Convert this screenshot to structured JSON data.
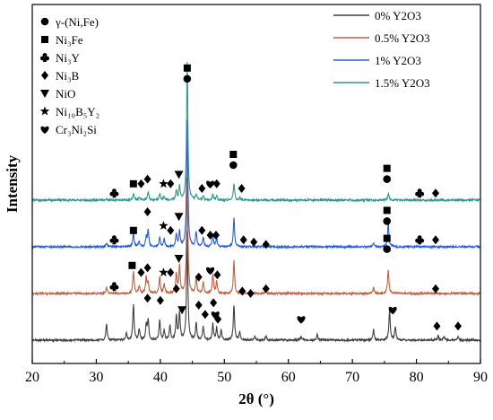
{
  "chart_data": {
    "type": "line",
    "title": "",
    "xlabel": "2θ (°)",
    "ylabel": "Intensity",
    "xlim": [
      20,
      90
    ],
    "xticks": [
      "20",
      "30",
      "40",
      "50",
      "60",
      "70",
      "80",
      "90"
    ],
    "legend_position": "top-right",
    "series": [
      {
        "name": "0% Y2O3",
        "color": "#404040",
        "baseline": 0,
        "peaks": [
          [
            31.6,
            0.6
          ],
          [
            34.7,
            0.25
          ],
          [
            35.8,
            1.35
          ],
          [
            36.7,
            0.4
          ],
          [
            37.8,
            0.55
          ],
          [
            38.1,
            0.75
          ],
          [
            39.9,
            0.75
          ],
          [
            40.6,
            0.35
          ],
          [
            41.5,
            0.55
          ],
          [
            42.5,
            0.9
          ],
          [
            43.0,
            1.0
          ],
          [
            44.2,
            4.0
          ],
          [
            45.6,
            0.65
          ],
          [
            46.7,
            0.5
          ],
          [
            48.2,
            0.6
          ],
          [
            48.8,
            0.45
          ],
          [
            49.5,
            0.35
          ],
          [
            51.5,
            1.3
          ],
          [
            52.4,
            0.3
          ],
          [
            54.8,
            0.15
          ],
          [
            56.5,
            0.15
          ],
          [
            62.0,
            0.15
          ],
          [
            64.5,
            0.2
          ],
          [
            73.3,
            0.4
          ],
          [
            75.8,
            1.1
          ],
          [
            76.7,
            0.5
          ],
          [
            83.4,
            0.15
          ],
          [
            84.3,
            0.15
          ],
          [
            86.5,
            0.15
          ]
        ]
      },
      {
        "name": "0.5% Y2O3",
        "color": "#c0603f",
        "baseline": 1,
        "peaks": [
          [
            31.6,
            0.25
          ],
          [
            35.8,
            0.85
          ],
          [
            36.7,
            0.3
          ],
          [
            37.8,
            0.6
          ],
          [
            38.1,
            0.4
          ],
          [
            39.9,
            0.6
          ],
          [
            40.6,
            0.35
          ],
          [
            42.5,
            0.75
          ],
          [
            43.0,
            1.0
          ],
          [
            44.2,
            4.3
          ],
          [
            45.6,
            0.6
          ],
          [
            46.7,
            0.4
          ],
          [
            48.2,
            0.7
          ],
          [
            48.8,
            0.45
          ],
          [
            51.5,
            1.2
          ],
          [
            56.5,
            0.1
          ],
          [
            73.3,
            0.2
          ],
          [
            75.6,
            0.9
          ]
        ]
      },
      {
        "name": "1% Y2O3",
        "color": "#2a5fd0",
        "baseline": 2,
        "peaks": [
          [
            31.6,
            0.15
          ],
          [
            35.8,
            0.55
          ],
          [
            36.7,
            0.2
          ],
          [
            37.8,
            0.35
          ],
          [
            38.1,
            0.6
          ],
          [
            39.9,
            0.35
          ],
          [
            40.6,
            0.3
          ],
          [
            42.5,
            0.45
          ],
          [
            43.0,
            0.6
          ],
          [
            44.2,
            4.7
          ],
          [
            45.6,
            0.55
          ],
          [
            46.7,
            0.35
          ],
          [
            48.2,
            0.45
          ],
          [
            48.8,
            0.3
          ],
          [
            51.5,
            1.05
          ],
          [
            56.5,
            0.1
          ],
          [
            73.3,
            0.15
          ],
          [
            75.6,
            0.9
          ]
        ]
      },
      {
        "name": "1.5% Y2O3",
        "color": "#2e9a8a",
        "baseline": 3,
        "peaks": [
          [
            31.6,
            0.05
          ],
          [
            35.8,
            0.25
          ],
          [
            36.7,
            0.1
          ],
          [
            38.1,
            0.3
          ],
          [
            39.9,
            0.25
          ],
          [
            40.6,
            0.15
          ],
          [
            42.5,
            0.35
          ],
          [
            43.0,
            0.5
          ],
          [
            44.2,
            5.1
          ],
          [
            45.6,
            0.2
          ],
          [
            46.7,
            0.15
          ],
          [
            48.2,
            0.2
          ],
          [
            48.8,
            0.15
          ],
          [
            51.5,
            0.6
          ],
          [
            52.4,
            0.1
          ],
          [
            75.6,
            0.25
          ]
        ]
      }
    ],
    "phase_legend": [
      {
        "icon": "circle",
        "label": "γ-(Ni,Fe)"
      },
      {
        "icon": "square",
        "label": "Ni₃Fe"
      },
      {
        "icon": "club",
        "label": "Ni₃Y"
      },
      {
        "icon": "diamond",
        "label": "Ni₃B"
      },
      {
        "icon": "triangle-down",
        "label": "NiO"
      },
      {
        "icon": "star",
        "label": "Ni₁₀B₅Y₂"
      },
      {
        "icon": "heart",
        "label": "Cr₃Ni₂Si"
      }
    ],
    "annotations": [
      {
        "x": 44.2,
        "y_level": 5.6,
        "icons": [
          "square",
          "circle"
        ]
      },
      {
        "x": 32.8,
        "y_level": 3.15,
        "icons": [
          "club"
        ]
      },
      {
        "x": 35.8,
        "y_level": 3.35,
        "icons": [
          "square"
        ]
      },
      {
        "x": 37.0,
        "y_level": 3.35,
        "icons": [
          "diamond"
        ]
      },
      {
        "x": 38.0,
        "y_level": 3.45,
        "icons": [
          "diamond"
        ]
      },
      {
        "x": 40.5,
        "y_level": 3.35,
        "icons": [
          "star"
        ]
      },
      {
        "x": 41.6,
        "y_level": 3.35,
        "icons": [
          "diamond"
        ]
      },
      {
        "x": 42.9,
        "y_level": 3.55,
        "icons": [
          "triangle-down"
        ]
      },
      {
        "x": 46.5,
        "y_level": 3.25,
        "icons": [
          "diamond"
        ]
      },
      {
        "x": 47.8,
        "y_level": 3.35,
        "icons": [
          "heart"
        ]
      },
      {
        "x": 48.8,
        "y_level": 3.35,
        "icons": [
          "diamond"
        ]
      },
      {
        "x": 51.4,
        "y_level": 3.75,
        "icons": [
          "square",
          "circle"
        ]
      },
      {
        "x": 52.7,
        "y_level": 3.25,
        "icons": [
          "diamond"
        ]
      },
      {
        "x": 75.4,
        "y_level": 3.45,
        "icons": [
          "square",
          "circle"
        ]
      },
      {
        "x": 80.5,
        "y_level": 3.15,
        "icons": [
          "club"
        ]
      },
      {
        "x": 83.0,
        "y_level": 3.15,
        "icons": [
          "diamond"
        ]
      },
      {
        "x": 32.8,
        "y_level": 2.15,
        "icons": [
          "club"
        ]
      },
      {
        "x": 35.8,
        "y_level": 2.35,
        "icons": [
          "square"
        ]
      },
      {
        "x": 38.0,
        "y_level": 2.75,
        "icons": [
          "diamond"
        ]
      },
      {
        "x": 40.5,
        "y_level": 2.45,
        "icons": [
          "star"
        ]
      },
      {
        "x": 41.6,
        "y_level": 2.35,
        "icons": [
          "diamond"
        ]
      },
      {
        "x": 42.9,
        "y_level": 2.65,
        "icons": [
          "triangle-down"
        ]
      },
      {
        "x": 46.5,
        "y_level": 2.35,
        "icons": [
          "diamond"
        ]
      },
      {
        "x": 47.8,
        "y_level": 2.25,
        "icons": [
          "diamond"
        ]
      },
      {
        "x": 48.7,
        "y_level": 2.25,
        "icons": [
          "diamond"
        ]
      },
      {
        "x": 53.0,
        "y_level": 2.15,
        "icons": [
          "diamond"
        ]
      },
      {
        "x": 54.6,
        "y_level": 2.1,
        "icons": [
          "diamond"
        ]
      },
      {
        "x": 56.5,
        "y_level": 2.05,
        "icons": [
          "diamond"
        ]
      },
      {
        "x": 75.4,
        "y_level": 2.55,
        "icons": [
          "square",
          "circle"
        ]
      },
      {
        "x": 80.5,
        "y_level": 2.15,
        "icons": [
          "club"
        ]
      },
      {
        "x": 83.0,
        "y_level": 2.15,
        "icons": [
          "diamond"
        ]
      },
      {
        "x": 32.8,
        "y_level": 1.15,
        "icons": [
          "club"
        ]
      },
      {
        "x": 35.6,
        "y_level": 1.6,
        "icons": [
          "square"
        ]
      },
      {
        "x": 37.0,
        "y_level": 1.45,
        "icons": [
          "diamond"
        ]
      },
      {
        "x": 38.0,
        "y_level": 1.55,
        "icons": [
          "diamond"
        ]
      },
      {
        "x": 40.5,
        "y_level": 1.45,
        "icons": [
          "star"
        ]
      },
      {
        "x": 41.6,
        "y_level": 1.45,
        "icons": [
          "diamond"
        ]
      },
      {
        "x": 42.9,
        "y_level": 1.75,
        "icons": [
          "triangle-down"
        ]
      },
      {
        "x": 46.0,
        "y_level": 1.35,
        "icons": [
          "diamond"
        ]
      },
      {
        "x": 47.8,
        "y_level": 1.5,
        "icons": [
          "heart"
        ]
      },
      {
        "x": 48.9,
        "y_level": 1.4,
        "icons": [
          "diamond"
        ]
      },
      {
        "x": 52.8,
        "y_level": 1.05,
        "icons": [
          "diamond"
        ]
      },
      {
        "x": 54.1,
        "y_level": 1.0,
        "icons": [
          "diamond"
        ]
      },
      {
        "x": 56.5,
        "y_level": 1.1,
        "icons": [
          "diamond"
        ]
      },
      {
        "x": 75.4,
        "y_level": 1.95,
        "icons": [
          "square",
          "circle"
        ]
      },
      {
        "x": 83.0,
        "y_level": 1.1,
        "icons": [
          "diamond"
        ]
      },
      {
        "x": 38.0,
        "y_level": 0.9,
        "icons": [
          "diamond"
        ]
      },
      {
        "x": 40.0,
        "y_level": 0.85,
        "icons": [
          "diamond"
        ]
      },
      {
        "x": 42.5,
        "y_level": 1.1,
        "icons": [
          "diamond"
        ]
      },
      {
        "x": 43.4,
        "y_level": 0.65,
        "icons": [
          "triangle-down"
        ]
      },
      {
        "x": 46.0,
        "y_level": 0.75,
        "icons": [
          "diamond"
        ]
      },
      {
        "x": 47.0,
        "y_level": 0.55,
        "icons": [
          "diamond"
        ]
      },
      {
        "x": 48.3,
        "y_level": 0.8,
        "icons": [
          "diamond"
        ]
      },
      {
        "x": 48.6,
        "y_level": 0.55,
        "icons": [
          "heart"
        ]
      },
      {
        "x": 49.0,
        "y_level": 0.45,
        "icons": [
          "diamond"
        ]
      },
      {
        "x": 62.0,
        "y_level": 0.45,
        "icons": [
          "heart"
        ]
      },
      {
        "x": 76.3,
        "y_level": 0.65,
        "icons": [
          "heart"
        ]
      },
      {
        "x": 83.2,
        "y_level": 0.3,
        "icons": [
          "diamond"
        ]
      },
      {
        "x": 86.5,
        "y_level": 0.3,
        "icons": [
          "diamond"
        ]
      }
    ]
  }
}
